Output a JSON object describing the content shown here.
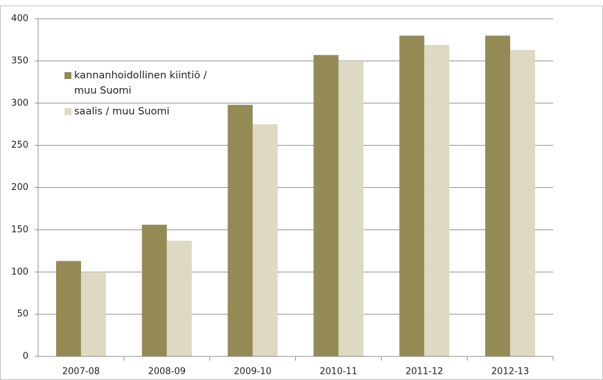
{
  "chart_data": {
    "type": "bar",
    "categories": [
      "2007-08",
      "2008-09",
      "2009-10",
      "2010-11",
      "2011-12",
      "2012-13"
    ],
    "series": [
      {
        "name": "kannanhoidollinen kiintiö / muu Suomi",
        "color": "#948a54",
        "values": [
          113,
          156,
          298,
          357,
          380,
          380
        ]
      },
      {
        "name": "saalis / muu Suomi",
        "color": "#ddd9c3",
        "values": [
          100,
          137,
          275,
          349,
          369,
          363
        ]
      }
    ],
    "ylim": [
      0,
      400
    ],
    "yticks": [
      0,
      50,
      100,
      150,
      200,
      250,
      300,
      350,
      400
    ],
    "grid": true,
    "legend": "upper left"
  }
}
